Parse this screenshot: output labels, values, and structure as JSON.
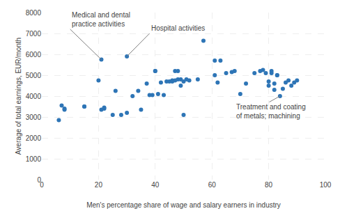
{
  "chart_data": {
    "type": "scatter",
    "x": [
      6,
      7,
      8,
      8,
      15,
      15,
      20,
      21,
      21,
      22,
      22,
      25,
      26,
      28,
      30,
      30,
      32,
      34,
      35,
      37,
      38,
      39,
      40,
      40,
      41,
      42,
      43,
      44,
      45,
      46,
      46,
      47,
      47,
      48,
      48,
      49,
      49,
      50,
      50,
      51,
      52,
      55,
      57,
      61,
      61,
      62,
      63,
      65,
      67,
      68,
      70,
      72,
      75,
      77,
      78,
      79,
      80,
      80,
      81,
      81,
      82,
      82,
      83,
      83,
      84,
      85,
      86,
      87,
      88,
      89,
      90
    ],
    "values": [
      2850,
      3550,
      3400,
      3350,
      3500,
      3500,
      4750,
      5750,
      3350,
      3400,
      3450,
      3100,
      4250,
      3100,
      3200,
      5900,
      4000,
      4250,
      3350,
      4600,
      4050,
      4050,
      5200,
      5200,
      4100,
      4650,
      4050,
      4700,
      4700,
      4750,
      4700,
      4750,
      5200,
      5200,
      4800,
      4800,
      4500,
      3100,
      4700,
      4800,
      4750,
      4800,
      6650,
      5700,
      5000,
      4650,
      5700,
      5100,
      5150,
      5200,
      4100,
      4600,
      5100,
      5200,
      5250,
      5100,
      4500,
      4700,
      5200,
      5100,
      4600,
      4300,
      5000,
      5000,
      4000,
      4350,
      4650,
      4750,
      4500,
      4650,
      4750
    ],
    "color": "#2e75b6",
    "xlabel": "Men's percentage share of wage and salary earners in industry",
    "ylabel": "Average of total earnings, EUR/month",
    "xlim": [
      0,
      100
    ],
    "ylim": [
      0,
      8000
    ],
    "xticks": [
      0,
      20,
      40,
      60,
      80,
      100
    ],
    "yticks": [
      0,
      1000,
      2000,
      3000,
      4000,
      5000,
      6000,
      7000,
      8000
    ],
    "grid": true,
    "annotations": [
      {
        "text": "Medical and dental\npractice activities",
        "xy": [
          21,
          5750
        ],
        "xytext": [
          10,
          7200
        ]
      },
      {
        "text": "Hospital activities",
        "xy": [
          30,
          5900
        ],
        "xytext": [
          38,
          7000
        ]
      },
      {
        "text": "Treatment and coating\nof metals; machining",
        "xy": [
          84,
          4000
        ],
        "xytext": [
          68,
          2800
        ]
      }
    ]
  }
}
